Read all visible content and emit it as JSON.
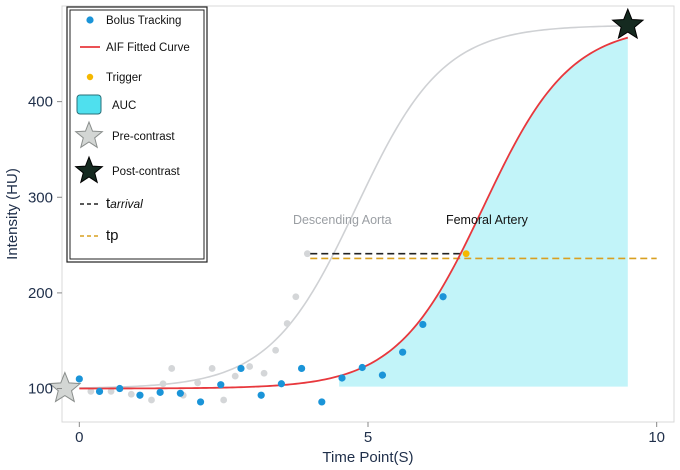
{
  "chart_data": {
    "type": "scatter",
    "title": "",
    "xlabel": "Time Point(S)",
    "ylabel": "Intensity (HU)",
    "xlim": [
      -0.3,
      10.3
    ],
    "ylim": [
      65,
      500
    ],
    "x_ticks": [
      0,
      5,
      10
    ],
    "y_ticks": [
      100,
      200,
      300,
      400
    ],
    "grid": false,
    "legend_position": "top-left",
    "colors": {
      "bolus": "#1a94d8",
      "fitted": "#e8383d",
      "trigger": "#f5b800",
      "auc": "#4fe0ee",
      "grey_points": "#d4d6d8",
      "grey_curve": "#cfd1d4",
      "arrival_line": "#222222",
      "tp_line": "#d9a020",
      "star_pre": "#d3d6d4",
      "star_post": "#152a20"
    },
    "series": [
      {
        "name": "Bolus Tracking",
        "kind": "points",
        "points": [
          [
            0.0,
            110
          ],
          [
            0.35,
            97
          ],
          [
            0.7,
            100
          ],
          [
            1.05,
            93
          ],
          [
            1.4,
            96
          ],
          [
            1.75,
            95
          ],
          [
            2.1,
            86
          ],
          [
            2.45,
            104
          ],
          [
            2.8,
            121
          ],
          [
            3.15,
            93
          ],
          [
            3.5,
            105
          ],
          [
            3.85,
            121
          ],
          [
            4.2,
            86
          ],
          [
            4.55,
            111
          ],
          [
            4.9,
            122
          ],
          [
            5.25,
            114
          ],
          [
            5.6,
            138
          ],
          [
            5.95,
            167
          ],
          [
            6.3,
            196
          ]
        ]
      },
      {
        "name": "AIF Fitted Curve",
        "kind": "sigmoid",
        "base": 100,
        "peak": 480,
        "midpoint": 7.0,
        "width": 0.75,
        "x_start": 0.0,
        "x_end": 9.5
      },
      {
        "name": "Trigger",
        "kind": "points",
        "points": [
          [
            6.7,
            241
          ]
        ]
      },
      {
        "name": "AUC",
        "kind": "area",
        "x_start": 4.5,
        "x_end": 9.5,
        "floor": 102
      },
      {
        "name": "Descending Aorta",
        "kind": "points_and_curve",
        "points": [
          [
            0.2,
            97
          ],
          [
            0.55,
            97
          ],
          [
            0.9,
            94
          ],
          [
            1.25,
            88
          ],
          [
            1.45,
            105
          ],
          [
            1.6,
            121
          ],
          [
            1.8,
            93
          ],
          [
            2.05,
            106
          ],
          [
            2.3,
            121
          ],
          [
            2.5,
            88
          ],
          [
            2.7,
            113
          ],
          [
            2.95,
            123
          ],
          [
            3.2,
            116
          ],
          [
            3.4,
            140
          ],
          [
            3.6,
            168
          ],
          [
            3.75,
            196
          ],
          [
            3.95,
            241
          ]
        ],
        "curve": {
          "base": 100,
          "peak": 480,
          "midpoint": 4.8,
          "width": 0.75,
          "x_start": 0.0,
          "x_end": 9.5
        }
      },
      {
        "name": "Pre-contrast",
        "kind": "marker",
        "points": [
          [
            -0.25,
            100
          ]
        ]
      },
      {
        "name": "Post-contrast",
        "kind": "marker",
        "points": [
          [
            9.5,
            480
          ]
        ]
      },
      {
        "name": "tarrival",
        "kind": "hline",
        "y": 241,
        "x_start": 4.0,
        "x_end": 6.7
      },
      {
        "name": "tp",
        "kind": "hline",
        "y": 236,
        "x_start": 4.0,
        "x_end": 10.0
      }
    ],
    "annotations": [
      {
        "text": "Descending Aorta",
        "x": 3.7,
        "y": 272,
        "color": "#9a9ea3"
      },
      {
        "text": "Femoral Artery",
        "x": 6.35,
        "y": 272,
        "color": "#111111"
      }
    ],
    "legend": {
      "entries": [
        {
          "key": "bolus",
          "label": "Bolus Tracking"
        },
        {
          "key": "fitted",
          "label": "AIF Fitted Curve"
        },
        {
          "key": "trigger",
          "label": "Trigger"
        },
        {
          "key": "auc",
          "label": "AUC"
        },
        {
          "key": "pre",
          "label": "Pre-contrast"
        },
        {
          "key": "post",
          "label": "Post-contrast"
        },
        {
          "key": "arrival",
          "label": "t",
          "sub": "arrival"
        },
        {
          "key": "tp",
          "label": "tp"
        }
      ]
    }
  }
}
